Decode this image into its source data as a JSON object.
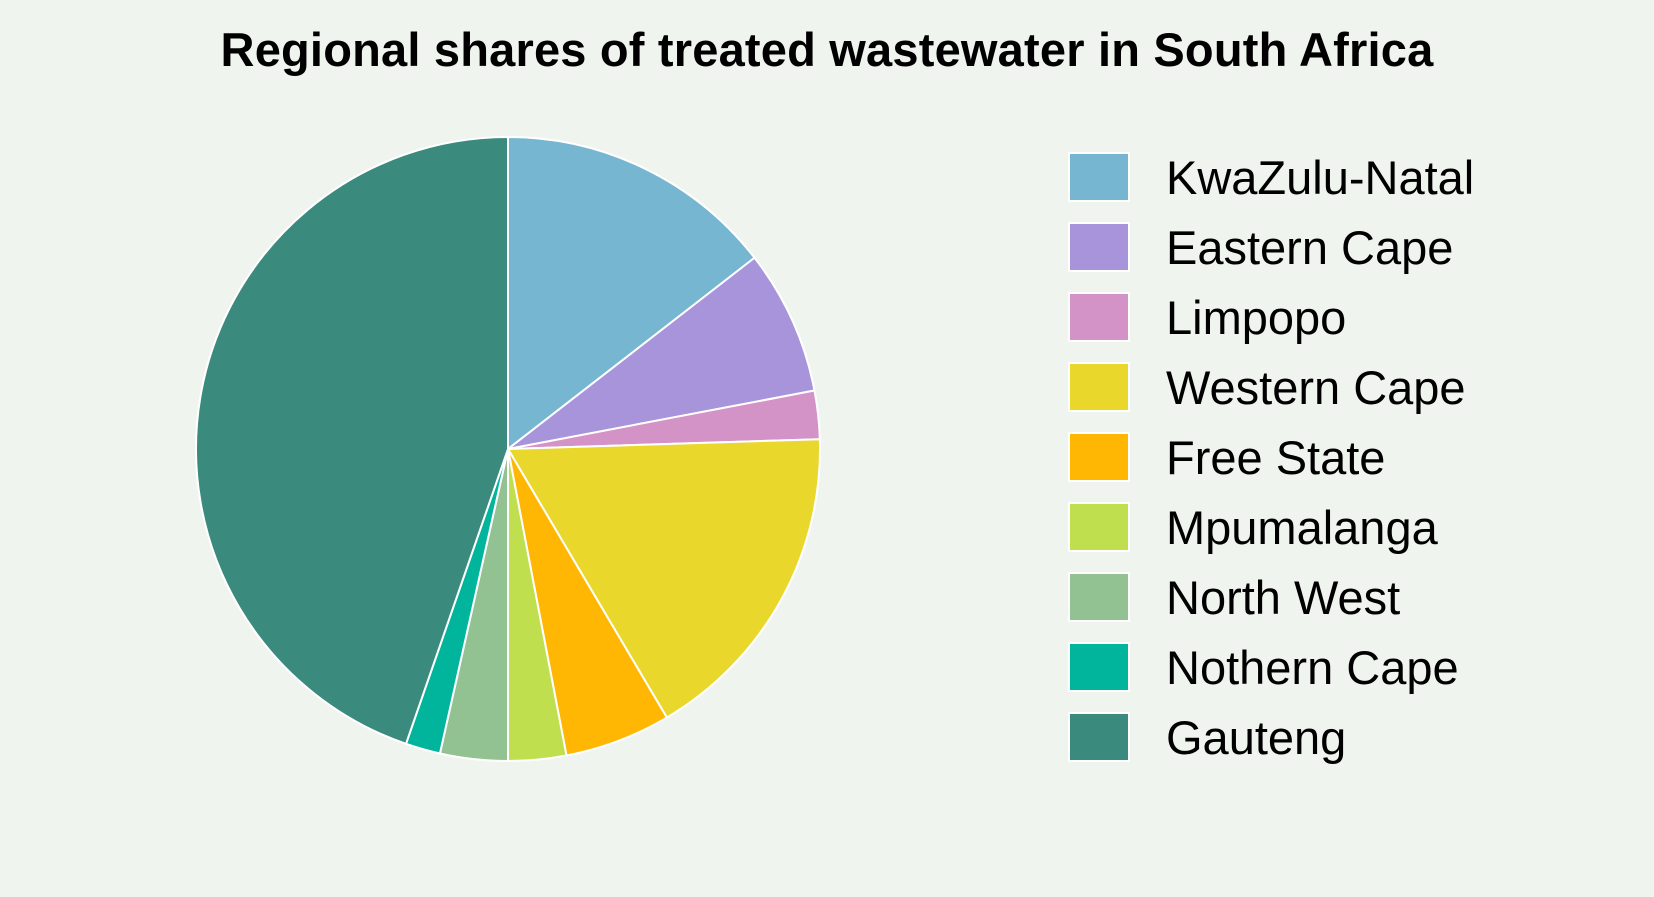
{
  "chart_data": {
    "type": "pie",
    "title": "Regional shares of treated wastewater in South Africa",
    "legend_position": "right",
    "slices": [
      {
        "name": "KwaZulu-Natal",
        "value": 14.5,
        "color": "#76b6d0"
      },
      {
        "name": "Eastern Cape",
        "value": 7.5,
        "color": "#a894da"
      },
      {
        "name": "Limpopo",
        "value": 2.5,
        "color": "#d393c7"
      },
      {
        "name": "Western Cape",
        "value": 17.0,
        "color": "#ead72c"
      },
      {
        "name": "Free State",
        "value": 5.5,
        "color": "#ffb703"
      },
      {
        "name": "Mpumalanga",
        "value": 3.0,
        "color": "#bfdf4f"
      },
      {
        "name": "North West",
        "value": 3.5,
        "color": "#93c292"
      },
      {
        "name": "Nothern Cape",
        "value": 1.8,
        "color": "#00b59b"
      },
      {
        "name": "Gauteng",
        "value": 44.7,
        "color": "#3a8a7e"
      }
    ]
  }
}
